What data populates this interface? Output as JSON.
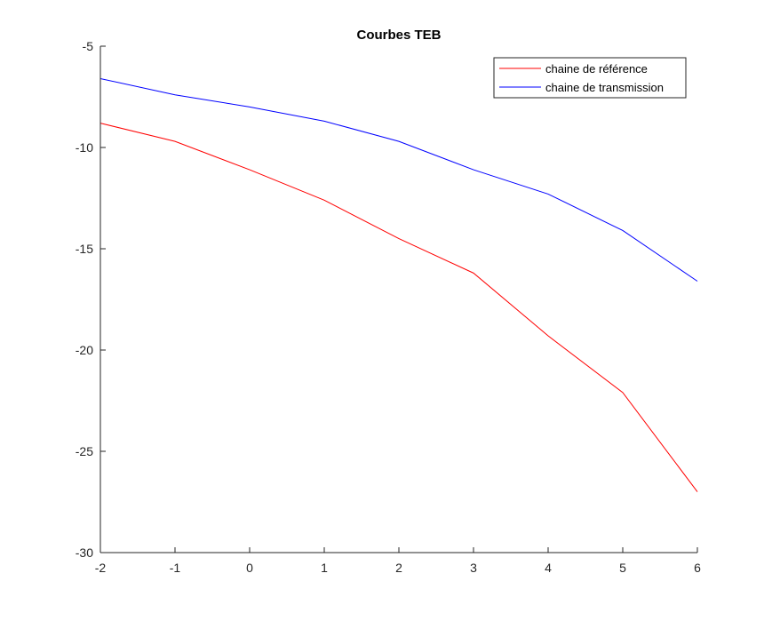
{
  "chart_data": {
    "type": "line",
    "title": "Courbes TEB",
    "xlabel": "",
    "ylabel": "",
    "x": [
      -2,
      -1,
      0,
      1,
      2,
      3,
      4,
      5,
      6
    ],
    "xlim": [
      -2,
      6
    ],
    "ylim": [
      -30,
      -5
    ],
    "xticks": [
      -2,
      -1,
      0,
      1,
      2,
      3,
      4,
      5,
      6
    ],
    "yticks": [
      -30,
      -25,
      -20,
      -15,
      -10,
      -5
    ],
    "grid": false,
    "legend_position": "top-right",
    "series": [
      {
        "name": "chaine de référence",
        "color": "#ff0000",
        "values": [
          -8.8,
          -9.7,
          -11.1,
          -12.6,
          -14.5,
          -16.2,
          -19.3,
          -22.1,
          -27.0
        ]
      },
      {
        "name": "chaine de transmission",
        "color": "#0000ff",
        "values": [
          -6.6,
          -7.4,
          -8.0,
          -8.7,
          -9.7,
          -11.1,
          -12.3,
          -14.1,
          -16.6
        ]
      }
    ]
  }
}
